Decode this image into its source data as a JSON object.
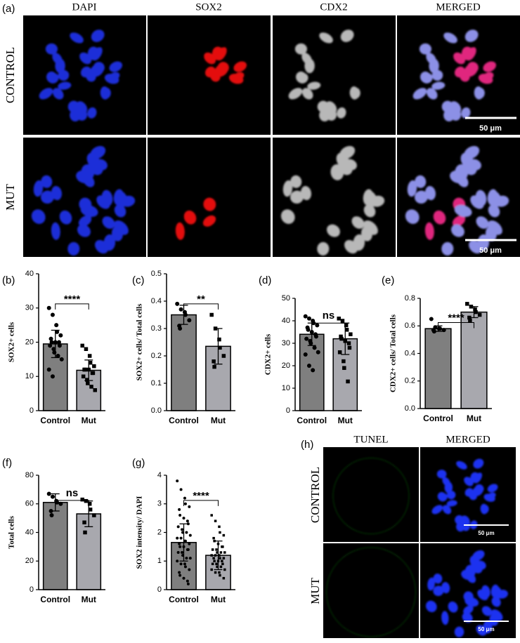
{
  "figure": {
    "panel_a": {
      "label": "(a)",
      "columns": [
        "DAPI",
        "SOX2",
        "CDX2",
        "MERGED"
      ],
      "rows": [
        "CONTROL",
        "MUT"
      ],
      "scale_bar": "50 μm"
    },
    "panel_h": {
      "label": "(h)",
      "columns": [
        "TUNEL",
        "MERGED"
      ],
      "rows": [
        "CONTROL",
        "MUT"
      ],
      "scale_bar": "50 μm"
    }
  },
  "chart_data": [
    {
      "type": "bar",
      "panel": "(b)",
      "ylabel": "SOX2+ cells",
      "categories": [
        "Control",
        "Mut"
      ],
      "colors": [
        "#7f7f7f",
        "#a8a8ae"
      ],
      "values": [
        19.5,
        11.8
      ],
      "errors": [
        4,
        3
      ],
      "significance": "****",
      "points": [
        [
          30,
          28,
          25,
          23,
          22,
          21,
          20,
          20,
          20,
          19,
          19,
          18,
          17,
          16,
          15,
          12,
          10
        ],
        [
          19,
          18,
          16,
          14,
          13,
          12,
          12,
          12,
          11,
          11,
          10,
          9,
          8,
          7,
          6
        ]
      ],
      "ylim": [
        0,
        40
      ],
      "yticks": [
        0,
        10,
        20,
        30,
        40
      ]
    },
    {
      "type": "bar",
      "panel": "(c)",
      "ylabel": "SOX2+ cells/ Total cells",
      "categories": [
        "Control",
        "Mut"
      ],
      "colors": [
        "#7f7f7f",
        "#a8a8ae"
      ],
      "values": [
        0.35,
        0.235
      ],
      "errors": [
        0.035,
        0.065
      ],
      "significance": "**",
      "points": [
        [
          0.39,
          0.37,
          0.36,
          0.35,
          0.33,
          0.31,
          0.3
        ],
        [
          0.35,
          0.3,
          0.26,
          0.23,
          0.2,
          0.18,
          0.16
        ]
      ],
      "ylim": [
        0,
        0.5
      ],
      "yticks": [
        {
          "value": 0,
          "label": "0.0"
        },
        0.1,
        0.2,
        0.3,
        0.4,
        0.5
      ]
    },
    {
      "type": "bar",
      "panel": "(d)",
      "ylabel": "CDX2+ cells",
      "categories": [
        "Control",
        "Mut"
      ],
      "colors": [
        "#7f7f7f",
        "#a8a8ae"
      ],
      "values": [
        34,
        32
      ],
      "errors": [
        5,
        7
      ],
      "significance": "ns",
      "points": [
        [
          42,
          41,
          40,
          39,
          38,
          37,
          36,
          35,
          34,
          33,
          32,
          31,
          30,
          28,
          26,
          25,
          20,
          18
        ],
        [
          41,
          40,
          38,
          36,
          34,
          33,
          32,
          31,
          30,
          28,
          26,
          22,
          19,
          13
        ]
      ],
      "ylim": [
        0,
        50
      ],
      "yticks": [
        0,
        10,
        20,
        30,
        40,
        50
      ]
    },
    {
      "type": "bar",
      "panel": "(e)",
      "ylabel": "CDX2+ cells/ Total cells",
      "categories": [
        "Control",
        "Mut"
      ],
      "colors": [
        "#7f7f7f",
        "#a8a8ae"
      ],
      "values": [
        0.58,
        0.7
      ],
      "errors": [
        0.02,
        0.04
      ],
      "significance": "****",
      "points": [
        [
          0.65,
          0.59,
          0.58,
          0.58,
          0.57,
          0.57,
          0.56
        ],
        [
          0.76,
          0.74,
          0.72,
          0.7,
          0.68,
          0.66,
          0.64
        ]
      ],
      "ylim": [
        0,
        0.8
      ],
      "yticks": [
        {
          "value": 0,
          "label": "0.0"
        },
        0.2,
        0.4,
        0.6,
        0.8
      ]
    },
    {
      "type": "bar",
      "panel": "(f)",
      "ylabel": "Total cells",
      "categories": [
        "Control",
        "Mut"
      ],
      "colors": [
        "#7f7f7f",
        "#a8a8ae"
      ],
      "values": [
        61,
        53
      ],
      "errors": [
        6,
        9
      ],
      "significance": "ns",
      "points": [
        [
          67,
          65,
          62,
          61,
          60,
          55,
          52
        ],
        [
          63,
          62,
          60,
          56,
          52,
          47,
          40
        ]
      ],
      "ylim": [
        0,
        80
      ],
      "yticks": [
        0,
        20,
        40,
        60,
        80
      ]
    },
    {
      "type": "bar",
      "panel": "(g)",
      "ylabel": "SOX2 intensity/ DAPI",
      "categories": [
        "Control",
        "Mut"
      ],
      "colors": [
        "#7f7f7f",
        "#a8a8ae"
      ],
      "values": [
        1.65,
        1.2
      ],
      "errors": [
        0.65,
        0.5
      ],
      "significance": "****",
      "points": [
        [
          3.8,
          3.5,
          3.2,
          3.0,
          2.9,
          2.8,
          2.6,
          2.5,
          2.4,
          2.3,
          2.2,
          2.1,
          2.0,
          2.0,
          1.9,
          1.8,
          1.8,
          1.7,
          1.7,
          1.6,
          1.6,
          1.5,
          1.5,
          1.4,
          1.4,
          1.3,
          1.3,
          1.2,
          1.1,
          1.1,
          1.0,
          0.9,
          0.9,
          0.8,
          0.7,
          0.6,
          0.5,
          0.4,
          0.3,
          0.2
        ],
        [
          2.6,
          2.4,
          2.2,
          2.0,
          1.9,
          1.8,
          1.7,
          1.6,
          1.5,
          1.5,
          1.4,
          1.4,
          1.3,
          1.3,
          1.3,
          1.2,
          1.2,
          1.2,
          1.1,
          1.1,
          1.1,
          1.0,
          1.0,
          1.0,
          0.9,
          0.9,
          0.9,
          0.8,
          0.8,
          0.7,
          0.7,
          0.6,
          0.6,
          0.5,
          0.4
        ]
      ],
      "ylim": [
        0,
        4
      ],
      "yticks": [
        0,
        1,
        2,
        3,
        4
      ]
    }
  ]
}
